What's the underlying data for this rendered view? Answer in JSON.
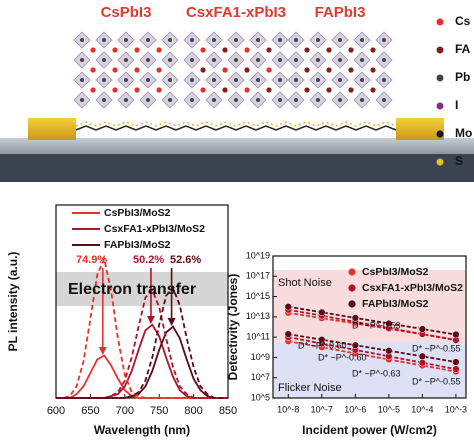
{
  "schematic": {
    "labels": [
      "CsPbI3",
      "CsxFA1-xPbI3",
      "FAPbI3"
    ],
    "legend": [
      "Cs",
      "FA",
      "Pb",
      "I",
      "Mo",
      "S"
    ]
  },
  "chart_data": [
    {
      "type": "line",
      "xlabel": "Wavelength (nm)",
      "ylabel": "PL intensity (a.u.)",
      "x": [
        600,
        610,
        620,
        630,
        640,
        650,
        660,
        670,
        680,
        690,
        700,
        710,
        720,
        730,
        740,
        750,
        760,
        770,
        780,
        790,
        800,
        810,
        820,
        830,
        840,
        850
      ],
      "xlim": [
        600,
        850
      ],
      "xticks": [
        600,
        650,
        700,
        750,
        800,
        850
      ],
      "ylim": [
        0,
        1
      ],
      "series": [
        {
          "name": "CsPbI3/MoS2",
          "color": "#e8302a",
          "values": [
            0,
            0,
            0,
            0.02,
            0.06,
            0.13,
            0.2,
            0.22,
            0.17,
            0.1,
            0.04,
            0.01,
            0,
            0,
            0,
            0,
            0,
            0,
            0,
            0,
            0,
            0,
            0,
            0,
            0,
            0
          ]
        },
        {
          "name": "CsxFA1-xPbI3/MoS2",
          "color": "#b0132b",
          "values": [
            0,
            0,
            0,
            0,
            0,
            0,
            0,
            0,
            0.01,
            0.02,
            0.06,
            0.14,
            0.25,
            0.35,
            0.38,
            0.32,
            0.21,
            0.11,
            0.04,
            0.01,
            0,
            0,
            0,
            0,
            0,
            0
          ]
        },
        {
          "name": "FAPbI3/MoS2",
          "color": "#5c0a16",
          "values": [
            0,
            0,
            0,
            0,
            0,
            0,
            0,
            0,
            0,
            0,
            0,
            0.01,
            0.02,
            0.06,
            0.14,
            0.25,
            0.34,
            0.37,
            0.31,
            0.2,
            0.1,
            0.04,
            0.01,
            0,
            0,
            0
          ]
        },
        {
          "color": "#e8302a",
          "dash": true,
          "values": [
            0,
            0,
            0.01,
            0.06,
            0.19,
            0.41,
            0.64,
            0.72,
            0.56,
            0.31,
            0.12,
            0.03,
            0.01,
            0,
            0,
            0,
            0,
            0,
            0,
            0,
            0,
            0,
            0,
            0,
            0,
            0
          ]
        },
        {
          "color": "#b0132b",
          "dash": true,
          "values": [
            0,
            0,
            0,
            0,
            0,
            0,
            0,
            0,
            0.01,
            0.03,
            0.09,
            0.21,
            0.37,
            0.52,
            0.56,
            0.47,
            0.31,
            0.16,
            0.06,
            0.02,
            0,
            0,
            0,
            0,
            0,
            0
          ]
        },
        {
          "color": "#5c0a16",
          "dash": true,
          "values": [
            0,
            0,
            0,
            0,
            0,
            0,
            0,
            0,
            0,
            0,
            0,
            0.01,
            0.03,
            0.09,
            0.21,
            0.38,
            0.53,
            0.57,
            0.48,
            0.31,
            0.16,
            0.06,
            0.02,
            0,
            0,
            0
          ]
        }
      ],
      "annotations": [
        "74.9%",
        "50.2%",
        "52.6%",
        "Electron transfer"
      ]
    },
    {
      "type": "scatter",
      "xlabel": "Incident power (W/cm2)",
      "ylabel": "Detectivity (Jones)",
      "xlog": true,
      "ylog": true,
      "x": [
        1e-08,
        1e-07,
        1e-06,
        1e-05,
        0.0001,
        0.001
      ],
      "xlim": [
        3.5e-09,
        0.002
      ],
      "xticks": [
        {
          "value": 1e-08,
          "label": "10^-8"
        },
        {
          "value": 1e-07,
          "label": "10^-7"
        },
        {
          "value": 1e-06,
          "label": "10^-6"
        },
        {
          "value": 1e-05,
          "label": "10^-5"
        },
        {
          "value": 0.0001,
          "label": "10^-4"
        },
        {
          "value": 0.001,
          "label": "10^-3"
        }
      ],
      "ylim": [
        100000.0,
        1e+19
      ],
      "yticks": [
        {
          "value": 100000.0,
          "label": "10^5"
        },
        {
          "value": 10000000.0,
          "label": "10^7"
        },
        {
          "value": 1000000000.0,
          "label": "10^9"
        },
        {
          "value": 100000000000.0,
          "label": "10^11"
        },
        {
          "value": 10000000000000.0,
          "label": "10^13"
        },
        {
          "value": 1000000000000000.0,
          "label": "10^15"
        },
        {
          "value": 1e+17,
          "label": "10^17"
        },
        {
          "value": 1e+19,
          "label": "10^19"
        }
      ],
      "series": [
        {
          "name": "CsPbI3/MoS2",
          "color": "#e8302a",
          "values": [
            25000000000000.0,
            7400000000000.0,
            2200000000000.0,
            650000000000.0,
            190000000000.0,
            56000000000.0
          ]
        },
        {
          "name": "CsxFA1-xPbI3/MoS2",
          "color": "#b0132b",
          "values": [
            50000000000000.0,
            13000000000000.0,
            3200000000000.0,
            790000000000.0,
            200000000000.0,
            50000000000.0
          ]
        },
        {
          "name": "FAPbI3/MoS2",
          "color": "#5c0a16",
          "values": [
            100000000000000.0,
            28000000000000.0,
            7900000000000.0,
            2200000000000.0,
            630000000000.0,
            180000000000.0
          ]
        },
        {
          "color": "#e8302a",
          "values": [
            40000000000.0,
            10000000000.0,
            2500000000.0,
            630000000.0,
            160000000.0,
            40000000.0
          ]
        },
        {
          "color": "#b0132b",
          "values": [
            100000000000.0,
            23000000000.0,
            5500000000.0,
            1300000000.0,
            300000000.0,
            71000000.0
          ]
        },
        {
          "color": "#5c0a16",
          "values": [
            200000000000.0,
            56000000000.0,
            16000000000.0,
            4500000000.0,
            1300000000.0,
            350000000.0
          ]
        }
      ],
      "fit": true,
      "annotations": [
        "Shot Noise",
        "Flicker Noise",
        "D* ~P^-0.53",
        "D* ~P^-0.60",
        "D* ~P^-0.55",
        "D* ~P^-0.63",
        "D* ~P^-0.60",
        "D* ~P^-0.55"
      ]
    }
  ]
}
